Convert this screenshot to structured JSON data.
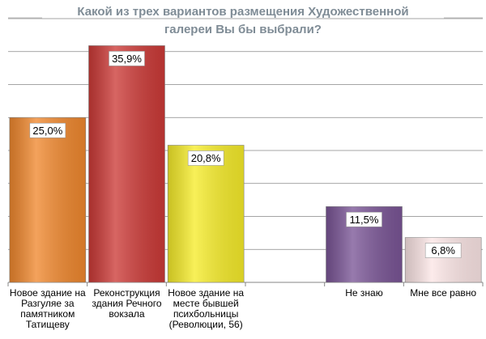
{
  "chart_data": {
    "type": "bar",
    "title": [
      "Какой из трех вариантов размещения Художественной",
      "галереи Вы бы выбрали?"
    ],
    "categories": [
      [
        "Новое здание на",
        "Разгуляе за",
        "памятником",
        "Татищеву"
      ],
      [
        "Реконструкция",
        "здания Речного",
        "вокзала"
      ],
      [
        "Новое здание на",
        "месте бывшей",
        "психбольницы",
        "(Революции, 56)"
      ],
      [],
      [
        "Не знаю"
      ],
      [
        "Мне все равно"
      ]
    ],
    "values": [
      25.0,
      35.9,
      20.8,
      null,
      11.5,
      6.8
    ],
    "data_labels": [
      "25,0%",
      "35,9%",
      "20,8%",
      "",
      "11,5%",
      "6,8%"
    ],
    "colors": [
      "#f0882e",
      "#cc3a37",
      "#f6ec2a",
      "",
      "#7a5596",
      "#fce6e6"
    ],
    "ylim": [
      0,
      40
    ],
    "grid": true,
    "legend": "none"
  }
}
